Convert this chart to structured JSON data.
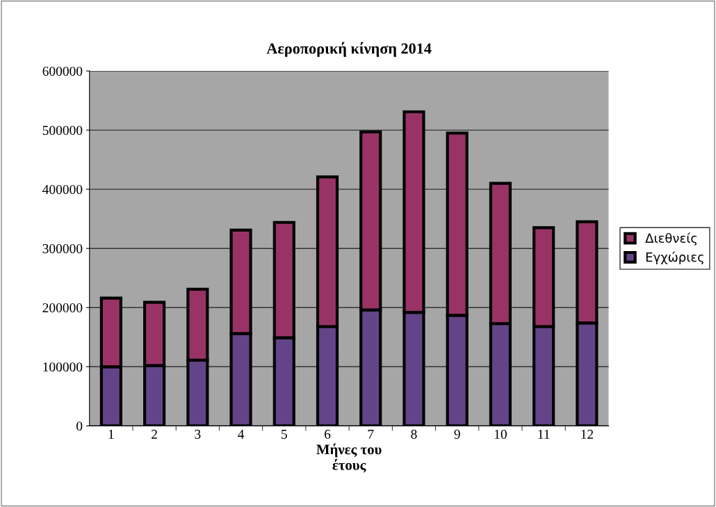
{
  "chart_data": {
    "type": "bar",
    "title": "Αεροπορική κίνηση 2014",
    "xlabel": "Μήνες του\nέτους",
    "categories": [
      "1",
      "2",
      "3",
      "4",
      "5",
      "6",
      "7",
      "8",
      "9",
      "10",
      "11",
      "12"
    ],
    "stacked": true,
    "series": [
      {
        "name": "Εγχώριες",
        "color": "#634489",
        "values": [
          100000,
          102000,
          111000,
          156000,
          149000,
          168000,
          196000,
          192000,
          187000,
          173000,
          168000,
          174000
        ]
      },
      {
        "name": "Διεθνείς",
        "color": "#993366",
        "values": [
          116000,
          107000,
          120000,
          175000,
          195000,
          253000,
          301000,
          339000,
          308000,
          237000,
          167000,
          171000
        ]
      }
    ],
    "ylim": [
      0,
      600000
    ],
    "yticks": [
      0,
      100000,
      200000,
      300000,
      400000,
      500000,
      600000
    ],
    "grid": "y",
    "legend": "right"
  }
}
